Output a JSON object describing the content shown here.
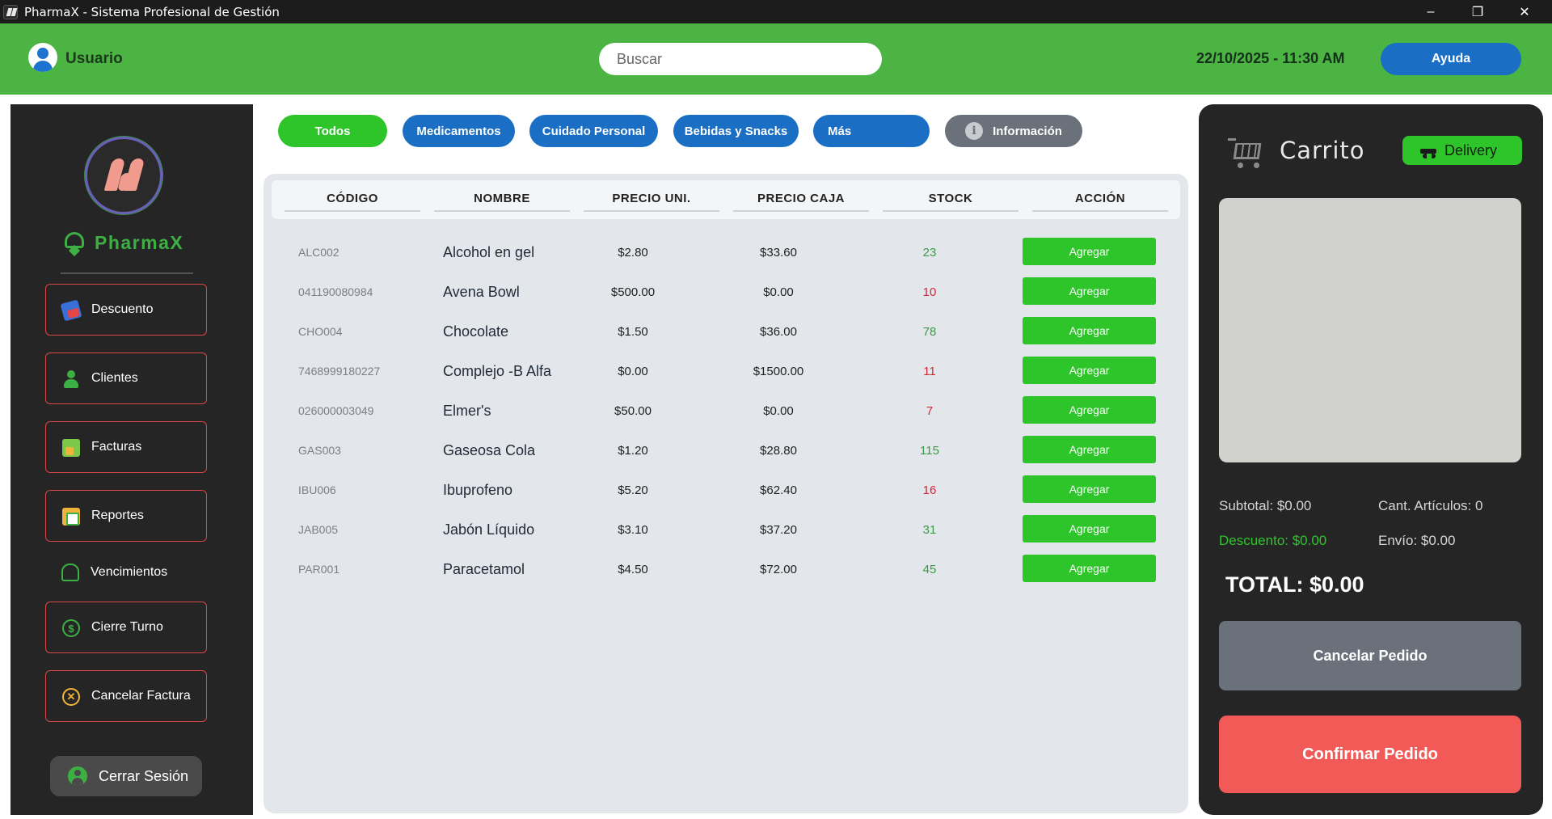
{
  "window": {
    "title": "PharmaX - Sistema Profesional de Gestión",
    "controls": [
      "minimize",
      "restore",
      "close"
    ]
  },
  "header": {
    "user_label": "Usuario",
    "search_placeholder": "Buscar",
    "search_value": "",
    "datetime": "22/10/2025 - 11:30 AM",
    "help_label": "Ayuda"
  },
  "sidebar": {
    "brand": "PharmaX",
    "items": [
      {
        "label": "Descuento",
        "icon": "discount-tag-icon"
      },
      {
        "label": "Clientes",
        "icon": "clients-icon"
      },
      {
        "label": "Facturas",
        "icon": "invoices-icon"
      },
      {
        "label": "Reportes",
        "icon": "reports-icon"
      },
      {
        "label": "Vencimientos",
        "icon": "bell-icon"
      },
      {
        "label": "Cierre Turno",
        "icon": "dollar-icon"
      },
      {
        "label": "Cancelar Factura",
        "icon": "cancel-circle-icon"
      }
    ],
    "logout_label": "Cerrar Sesión"
  },
  "categories": [
    {
      "label": "Todos",
      "active": true
    },
    {
      "label": "Medicamentos",
      "active": false
    },
    {
      "label": "Cuidado Personal",
      "active": false
    },
    {
      "label": "Bebidas y Snacks",
      "active": false
    },
    {
      "label": "Más",
      "active": false
    },
    {
      "label": "Información",
      "active": false
    }
  ],
  "table": {
    "columns": [
      "CÓDIGO",
      "NOMBRE",
      "PRECIO UNI.",
      "PRECIO CAJA",
      "STOCK",
      "ACCIÓN"
    ],
    "action_label": "Agregar",
    "rows": [
      {
        "code": "ALC002",
        "name": "Alcohol en gel",
        "unit_price": "$2.80",
        "box_price": "$33.60",
        "stock": "23",
        "low": false
      },
      {
        "code": "041190080984",
        "name": "Avena Bowl",
        "unit_price": "$500.00",
        "box_price": "$0.00",
        "stock": "10",
        "low": true
      },
      {
        "code": "CHO004",
        "name": "Chocolate",
        "unit_price": "$1.50",
        "box_price": "$36.00",
        "stock": "78",
        "low": false
      },
      {
        "code": "7468999180227",
        "name": "Complejo -B Alfa",
        "unit_price": "$0.00",
        "box_price": "$1500.00",
        "stock": "11",
        "low": true
      },
      {
        "code": "026000003049",
        "name": "Elmer's",
        "unit_price": "$50.00",
        "box_price": "$0.00",
        "stock": "7",
        "low": true
      },
      {
        "code": "GAS003",
        "name": "Gaseosa Cola",
        "unit_price": "$1.20",
        "box_price": "$28.80",
        "stock": "115",
        "low": false
      },
      {
        "code": "IBU006",
        "name": "Ibuprofeno",
        "unit_price": "$5.20",
        "box_price": "$62.40",
        "stock": "16",
        "low": true
      },
      {
        "code": "JAB005",
        "name": "Jabón Líquido",
        "unit_price": "$3.10",
        "box_price": "$37.20",
        "stock": "31",
        "low": false
      },
      {
        "code": "PAR001",
        "name": "Paracetamol",
        "unit_price": "$4.50",
        "box_price": "$72.00",
        "stock": "45",
        "low": false
      }
    ]
  },
  "cart": {
    "title": "Carrito",
    "delivery_label": "Delivery",
    "subtotal": "Subtotal: $0.00",
    "item_count": "Cant. Artículos: 0",
    "discount": "Descuento: $0.00",
    "shipping": "Envío: $0.00",
    "total": "TOTAL: $0.00",
    "cancel_label": "Cancelar Pedido",
    "confirm_label": "Confirmar Pedido"
  },
  "colors": {
    "header_green": "#4bb443",
    "accent_green": "#2ec52a",
    "accent_blue": "#1a6fc4",
    "danger_red": "#f25a58",
    "stock_low": "#d02a3a",
    "stock_ok": "#3a9a45"
  }
}
